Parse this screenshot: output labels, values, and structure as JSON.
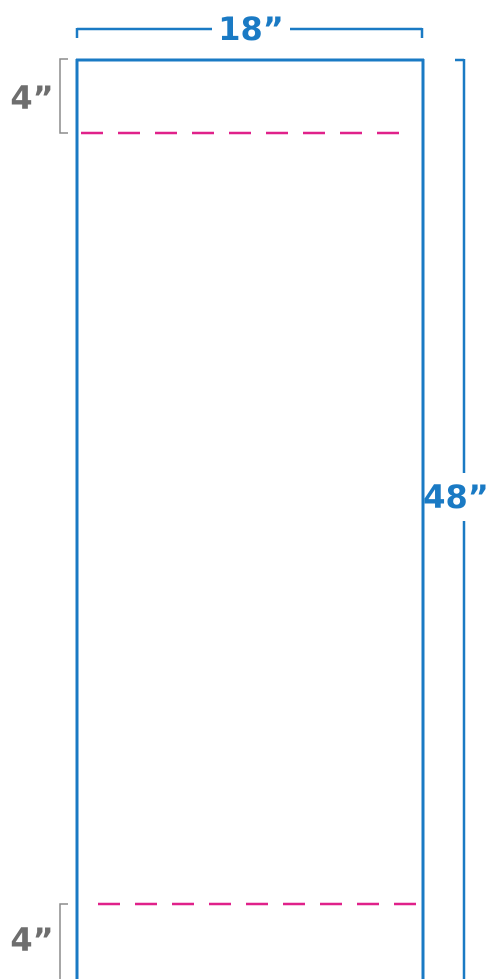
{
  "dimensions": {
    "width_label": "18”",
    "height_label": "48”",
    "top_margin_label": "4”",
    "bottom_margin_label": "4”"
  },
  "colors": {
    "outline": "#1a7ac4",
    "dimension_text": "#1a7ac4",
    "margin_guide": "#e0218a",
    "margin_bracket": "#8a8a8a",
    "margin_text": "#6e6e6e",
    "background": "#ffffff"
  }
}
